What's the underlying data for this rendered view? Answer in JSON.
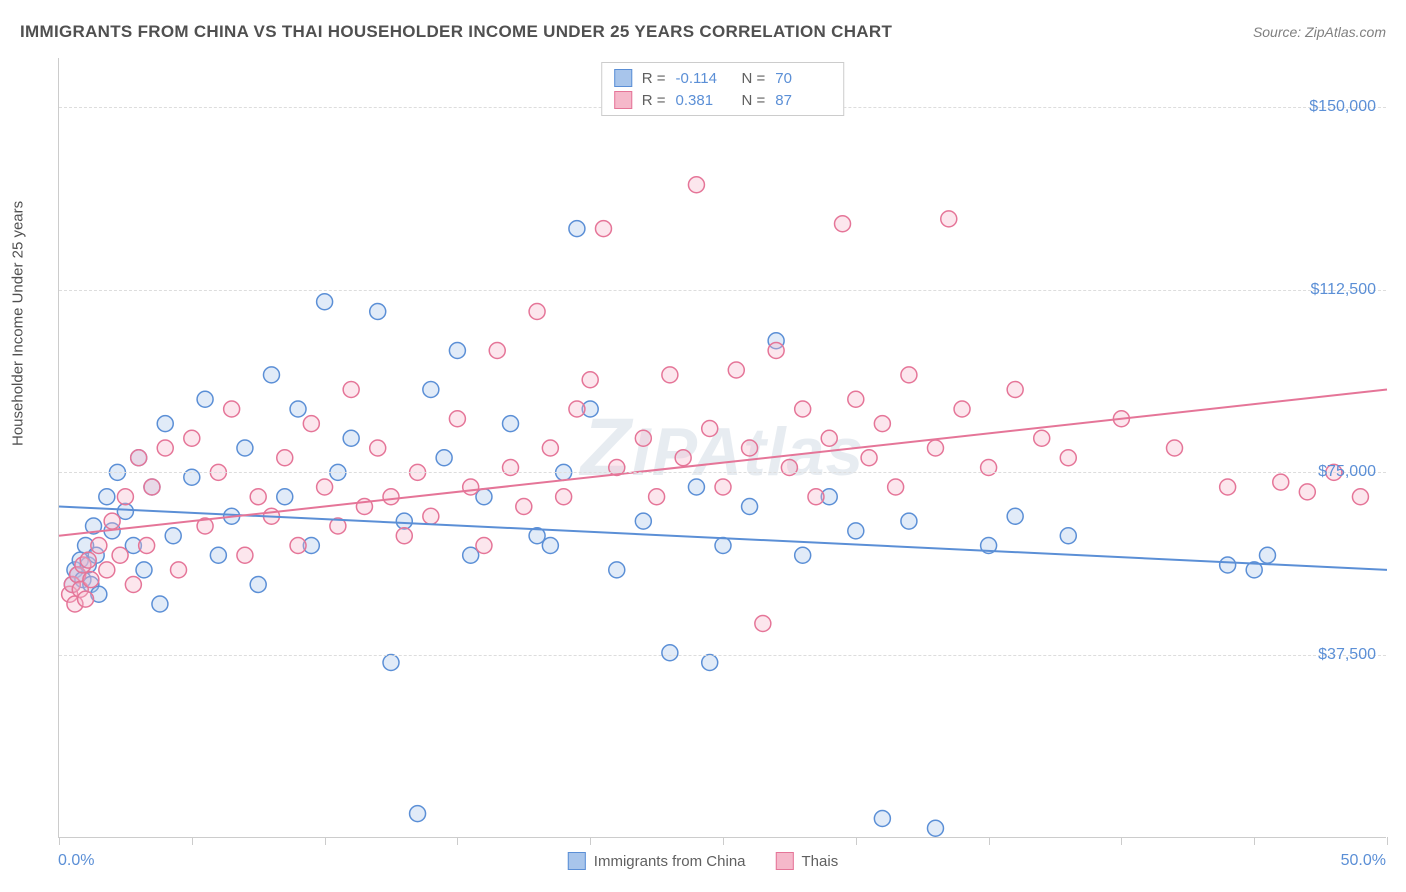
{
  "title": "IMMIGRANTS FROM CHINA VS THAI HOUSEHOLDER INCOME UNDER 25 YEARS CORRELATION CHART",
  "source": "Source: ZipAtlas.com",
  "y_axis_title": "Householder Income Under 25 years",
  "watermark": "ZIPAtlas",
  "chart": {
    "type": "scatter",
    "xlim": [
      0,
      50
    ],
    "ylim": [
      0,
      160000
    ],
    "x_tick_positions": [
      0,
      5,
      10,
      15,
      20,
      25,
      30,
      35,
      40,
      45,
      50
    ],
    "x_labels": {
      "min": "0.0%",
      "max": "50.0%"
    },
    "y_ticks": [
      {
        "value": 37500,
        "label": "$37,500"
      },
      {
        "value": 75000,
        "label": "$75,000"
      },
      {
        "value": 112500,
        "label": "$112,500"
      },
      {
        "value": 150000,
        "label": "$150,000"
      }
    ],
    "background_color": "#ffffff",
    "grid_color": "#dddddd",
    "axis_color": "#cccccc",
    "label_color": "#5b8fd6",
    "marker_radius": 8,
    "marker_stroke_width": 1.5,
    "marker_fill_opacity": 0.35,
    "trend_line_width": 2,
    "series": [
      {
        "name": "Immigrants from China",
        "color_stroke": "#5b8fd6",
        "color_fill": "#a8c5eb",
        "R": "-0.114",
        "N": "70",
        "trend": {
          "y_at_xmin": 68000,
          "y_at_xmax": 55000
        },
        "points": [
          [
            0.5,
            52000
          ],
          [
            0.6,
            55000
          ],
          [
            0.7,
            54000
          ],
          [
            0.8,
            57000
          ],
          [
            0.9,
            53000
          ],
          [
            1.0,
            60000
          ],
          [
            1.1,
            56000
          ],
          [
            1.2,
            52000
          ],
          [
            1.3,
            64000
          ],
          [
            1.4,
            58000
          ],
          [
            1.5,
            50000
          ],
          [
            1.8,
            70000
          ],
          [
            2.0,
            63000
          ],
          [
            2.2,
            75000
          ],
          [
            2.5,
            67000
          ],
          [
            2.8,
            60000
          ],
          [
            3.0,
            78000
          ],
          [
            3.2,
            55000
          ],
          [
            3.5,
            72000
          ],
          [
            3.8,
            48000
          ],
          [
            4.0,
            85000
          ],
          [
            4.3,
            62000
          ],
          [
            5.0,
            74000
          ],
          [
            5.5,
            90000
          ],
          [
            6.0,
            58000
          ],
          [
            6.5,
            66000
          ],
          [
            7.0,
            80000
          ],
          [
            7.5,
            52000
          ],
          [
            8.0,
            95000
          ],
          [
            8.5,
            70000
          ],
          [
            9.0,
            88000
          ],
          [
            9.5,
            60000
          ],
          [
            10.0,
            110000
          ],
          [
            10.5,
            75000
          ],
          [
            11.0,
            82000
          ],
          [
            12.0,
            108000
          ],
          [
            12.5,
            36000
          ],
          [
            13.0,
            65000
          ],
          [
            13.5,
            5000
          ],
          [
            14.0,
            92000
          ],
          [
            14.5,
            78000
          ],
          [
            15.0,
            100000
          ],
          [
            15.5,
            58000
          ],
          [
            16.0,
            70000
          ],
          [
            17.0,
            85000
          ],
          [
            18.0,
            62000
          ],
          [
            18.5,
            60000
          ],
          [
            19.0,
            75000
          ],
          [
            19.5,
            125000
          ],
          [
            20.0,
            88000
          ],
          [
            21.0,
            55000
          ],
          [
            22.0,
            65000
          ],
          [
            23.0,
            38000
          ],
          [
            24.0,
            72000
          ],
          [
            24.5,
            36000
          ],
          [
            25.0,
            60000
          ],
          [
            26.0,
            68000
          ],
          [
            27.0,
            102000
          ],
          [
            28.0,
            58000
          ],
          [
            29.0,
            70000
          ],
          [
            30.0,
            63000
          ],
          [
            31.0,
            4000
          ],
          [
            32.0,
            65000
          ],
          [
            33.0,
            2000
          ],
          [
            35.0,
            60000
          ],
          [
            36.0,
            66000
          ],
          [
            38.0,
            62000
          ],
          [
            44.0,
            56000
          ],
          [
            45.0,
            55000
          ],
          [
            45.5,
            58000
          ]
        ]
      },
      {
        "name": "Thais",
        "color_stroke": "#e57598",
        "color_fill": "#f5b8ca",
        "R": "0.381",
        "N": "87",
        "trend": {
          "y_at_xmin": 62000,
          "y_at_xmax": 92000
        },
        "points": [
          [
            0.4,
            50000
          ],
          [
            0.5,
            52000
          ],
          [
            0.6,
            48000
          ],
          [
            0.7,
            54000
          ],
          [
            0.8,
            51000
          ],
          [
            0.9,
            56000
          ],
          [
            1.0,
            49000
          ],
          [
            1.1,
            57000
          ],
          [
            1.2,
            53000
          ],
          [
            1.5,
            60000
          ],
          [
            1.8,
            55000
          ],
          [
            2.0,
            65000
          ],
          [
            2.3,
            58000
          ],
          [
            2.5,
            70000
          ],
          [
            2.8,
            52000
          ],
          [
            3.0,
            78000
          ],
          [
            3.3,
            60000
          ],
          [
            3.5,
            72000
          ],
          [
            4.0,
            80000
          ],
          [
            4.5,
            55000
          ],
          [
            5.0,
            82000
          ],
          [
            5.5,
            64000
          ],
          [
            6.0,
            75000
          ],
          [
            6.5,
            88000
          ],
          [
            7.0,
            58000
          ],
          [
            7.5,
            70000
          ],
          [
            8.0,
            66000
          ],
          [
            8.5,
            78000
          ],
          [
            9.0,
            60000
          ],
          [
            9.5,
            85000
          ],
          [
            10.0,
            72000
          ],
          [
            10.5,
            64000
          ],
          [
            11.0,
            92000
          ],
          [
            11.5,
            68000
          ],
          [
            12.0,
            80000
          ],
          [
            12.5,
            70000
          ],
          [
            13.0,
            62000
          ],
          [
            13.5,
            75000
          ],
          [
            14.0,
            66000
          ],
          [
            15.0,
            86000
          ],
          [
            15.5,
            72000
          ],
          [
            16.0,
            60000
          ],
          [
            16.5,
            100000
          ],
          [
            17.0,
            76000
          ],
          [
            17.5,
            68000
          ],
          [
            18.0,
            108000
          ],
          [
            18.5,
            80000
          ],
          [
            19.0,
            70000
          ],
          [
            19.5,
            88000
          ],
          [
            20.0,
            94000
          ],
          [
            20.5,
            125000
          ],
          [
            21.0,
            76000
          ],
          [
            22.0,
            82000
          ],
          [
            22.5,
            70000
          ],
          [
            23.0,
            95000
          ],
          [
            23.5,
            78000
          ],
          [
            24.0,
            134000
          ],
          [
            24.5,
            84000
          ],
          [
            25.0,
            72000
          ],
          [
            25.5,
            96000
          ],
          [
            26.0,
            80000
          ],
          [
            26.5,
            44000
          ],
          [
            27.0,
            100000
          ],
          [
            27.5,
            76000
          ],
          [
            28.0,
            88000
          ],
          [
            28.5,
            70000
          ],
          [
            29.0,
            82000
          ],
          [
            29.5,
            126000
          ],
          [
            30.0,
            90000
          ],
          [
            30.5,
            78000
          ],
          [
            31.0,
            85000
          ],
          [
            31.5,
            72000
          ],
          [
            32.0,
            95000
          ],
          [
            33.0,
            80000
          ],
          [
            33.5,
            127000
          ],
          [
            34.0,
            88000
          ],
          [
            35.0,
            76000
          ],
          [
            36.0,
            92000
          ],
          [
            37.0,
            82000
          ],
          [
            38.0,
            78000
          ],
          [
            40.0,
            86000
          ],
          [
            42.0,
            80000
          ],
          [
            44.0,
            72000
          ],
          [
            46.0,
            73000
          ],
          [
            47.0,
            71000
          ],
          [
            48.0,
            75000
          ],
          [
            49.0,
            70000
          ]
        ]
      }
    ]
  },
  "legend_bottom": [
    {
      "label": "Immigrants from China",
      "fill": "#a8c5eb",
      "stroke": "#5b8fd6"
    },
    {
      "label": "Thais",
      "fill": "#f5b8ca",
      "stroke": "#e57598"
    }
  ]
}
